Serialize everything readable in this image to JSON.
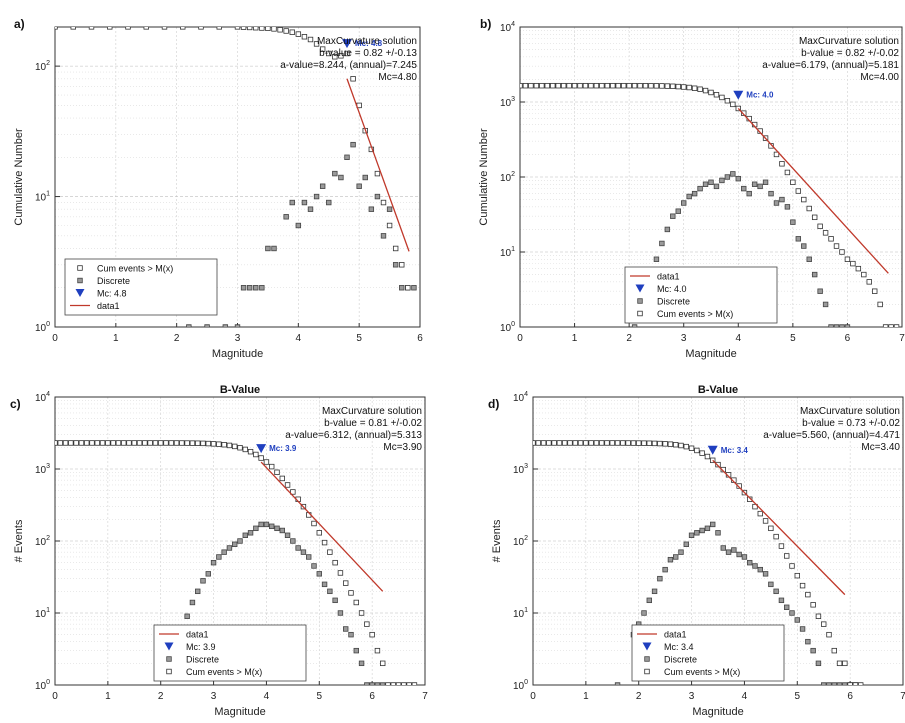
{
  "chart_data": [
    {
      "panel_label": "a)",
      "type": "scatter",
      "title": "",
      "xlabel": "Magnitude",
      "ylabel": "Cumulative Number",
      "xlim": [
        0,
        6
      ],
      "ylim_log10": [
        0,
        2.3
      ],
      "y_scale": "log",
      "x_ticks": [
        "0",
        "1",
        "2",
        "3",
        "4",
        "5",
        "6"
      ],
      "y_tick_exponents": [
        "0",
        "1",
        "2"
      ],
      "grid": true,
      "legend_placement": "bottom-left",
      "legend": [
        "Cum events > M(x)",
        "Discrete",
        "Mc: 4.8",
        "data1"
      ],
      "annotation": [
        "MaxCurvature solution",
        "b-value = 0.82 +/-0.13",
        "a-value=8.244, (annual)=7.245",
        "Mc=4.80"
      ],
      "mc_label": "Mc: 4.8",
      "mc": [
        4.8,
        150
      ],
      "series": [
        {
          "name": "Cum events > M(x)",
          "x": [
            0.0,
            0.3,
            0.6,
            0.9,
            1.2,
            1.5,
            1.8,
            2.1,
            2.4,
            2.7,
            3.0,
            3.1,
            3.2,
            3.3,
            3.4,
            3.5,
            3.6,
            3.7,
            3.8,
            3.9,
            4.0,
            4.1,
            4.2,
            4.3,
            4.4,
            4.5,
            4.6,
            4.7,
            4.8,
            4.9,
            5.0,
            5.1,
            5.2,
            5.3,
            5.4,
            5.5,
            5.6,
            5.7,
            5.8
          ],
          "y": [
            200,
            200,
            200,
            200,
            200,
            200,
            200,
            200,
            200,
            200,
            200,
            199,
            198,
            197,
            196,
            195,
            193,
            190,
            186,
            182,
            176,
            168,
            160,
            148,
            135,
            125,
            118,
            120,
            125,
            80,
            50,
            32,
            23,
            15,
            9,
            6,
            4,
            3,
            2
          ]
        },
        {
          "name": "Discrete",
          "x": [
            2.2,
            2.5,
            2.8,
            3.0,
            3.1,
            3.2,
            3.3,
            3.4,
            3.5,
            3.6,
            3.8,
            3.9,
            4.0,
            4.1,
            4.2,
            4.3,
            4.4,
            4.5,
            4.6,
            4.7,
            4.8,
            4.9,
            5.0,
            5.1,
            5.2,
            5.3,
            5.4,
            5.5,
            5.6,
            5.7,
            5.8,
            5.9
          ],
          "y": [
            1,
            1,
            1,
            1,
            2,
            2,
            2,
            2,
            4,
            4,
            7,
            9,
            6,
            9,
            8,
            10,
            12,
            9,
            15,
            14,
            20,
            25,
            12,
            14,
            8,
            10,
            5,
            8,
            3,
            2,
            2,
            2
          ]
        },
        {
          "name": "data1",
          "x": [
            4.8,
            5.82
          ],
          "y": [
            80,
            3.8
          ]
        }
      ]
    },
    {
      "panel_label": "b)",
      "type": "scatter",
      "title": "",
      "xlabel": "Magnitude",
      "ylabel": "Cumulative Number",
      "xlim": [
        0,
        7
      ],
      "ylim_log10": [
        0,
        4
      ],
      "y_scale": "log",
      "x_ticks": [
        "0",
        "1",
        "2",
        "3",
        "4",
        "5",
        "6",
        "7"
      ],
      "y_tick_exponents": [
        "0",
        "1",
        "2",
        "3",
        "4"
      ],
      "grid": true,
      "legend_placement": "bottom-center",
      "legend": [
        "data1",
        "Mc: 4.0",
        "Discrete",
        "Cum events > M(x)"
      ],
      "annotation": [
        "MaxCurvature solution",
        "b-value = 0.82 +/-0.02",
        "a-value=6.179, (annual)=5.181",
        "Mc=4.00"
      ],
      "mc_label": "Mc: 4.0",
      "mc": [
        4.0,
        1250
      ],
      "series": [
        {
          "name": "Cum events > M(x)",
          "x": [
            0.0,
            0.1,
            0.2,
            0.3,
            0.4,
            0.5,
            0.6,
            0.7,
            0.8,
            0.9,
            1.0,
            1.1,
            1.2,
            1.3,
            1.4,
            1.5,
            1.6,
            1.7,
            1.8,
            1.9,
            2.0,
            2.1,
            2.2,
            2.3,
            2.4,
            2.5,
            2.6,
            2.7,
            2.8,
            2.9,
            3.0,
            3.1,
            3.2,
            3.3,
            3.4,
            3.5,
            3.6,
            3.7,
            3.8,
            3.9,
            4.0,
            4.1,
            4.2,
            4.3,
            4.4,
            4.5,
            4.6,
            4.7,
            4.8,
            4.9,
            5.0,
            5.1,
            5.2,
            5.3,
            5.4,
            5.5,
            5.6,
            5.7,
            5.8,
            5.9,
            6.0,
            6.1,
            6.2,
            6.3,
            6.4,
            6.5,
            6.6,
            6.7,
            6.8,
            6.9
          ],
          "y": [
            1650,
            1650,
            1650,
            1650,
            1650,
            1650,
            1650,
            1650,
            1650,
            1650,
            1650,
            1650,
            1650,
            1650,
            1650,
            1650,
            1650,
            1650,
            1650,
            1650,
            1650,
            1650,
            1649,
            1648,
            1646,
            1643,
            1638,
            1630,
            1620,
            1605,
            1585,
            1560,
            1525,
            1480,
            1420,
            1340,
            1250,
            1150,
            1040,
            930,
            820,
            710,
            600,
            500,
            410,
            330,
            260,
            200,
            150,
            115,
            85,
            65,
            50,
            38,
            29,
            22,
            18,
            15,
            12,
            10,
            8,
            7,
            6,
            5,
            4,
            3,
            2,
            1,
            1,
            1
          ]
        },
        {
          "name": "Discrete",
          "x": [
            2.1,
            2.2,
            2.3,
            2.4,
            2.5,
            2.6,
            2.7,
            2.8,
            2.9,
            3.0,
            3.1,
            3.2,
            3.3,
            3.4,
            3.5,
            3.6,
            3.7,
            3.8,
            3.9,
            4.0,
            4.1,
            4.2,
            4.3,
            4.4,
            4.5,
            4.6,
            4.7,
            4.8,
            4.9,
            5.0,
            5.1,
            5.2,
            5.3,
            5.4,
            5.5,
            5.6,
            5.7,
            5.8,
            5.9,
            6.0
          ],
          "y": [
            1,
            2,
            3,
            5,
            8,
            13,
            20,
            30,
            35,
            45,
            55,
            60,
            70,
            80,
            85,
            75,
            90,
            100,
            110,
            95,
            70,
            60,
            80,
            75,
            85,
            60,
            45,
            50,
            40,
            25,
            15,
            12,
            8,
            5,
            3,
            2,
            1,
            1,
            1,
            1
          ]
        },
        {
          "name": "data1",
          "x": [
            4.0,
            6.75
          ],
          "y": [
            820,
            5.2
          ]
        }
      ]
    },
    {
      "panel_label": "c)",
      "type": "scatter",
      "title": "B-Value",
      "xlabel": "Magnitude",
      "ylabel": "# Events",
      "xlim": [
        0,
        7
      ],
      "ylim_log10": [
        0,
        4
      ],
      "y_scale": "log",
      "x_ticks": [
        "0",
        "1",
        "2",
        "3",
        "4",
        "5",
        "6",
        "7"
      ],
      "y_tick_exponents": [
        "0",
        "1",
        "2",
        "3",
        "4"
      ],
      "grid": true,
      "legend_placement": "bottom-center",
      "legend": [
        "data1",
        "Mc: 3.9",
        "Discrete",
        "Cum events > M(x)"
      ],
      "annotation": [
        "MaxCurvature solution",
        "b-value = 0.81 +/-0.02",
        "a-value=6.312, (annual)=5.313",
        "Mc=3.90"
      ],
      "mc_label": "Mc: 3.9",
      "mc": [
        3.9,
        1950
      ],
      "series": [
        {
          "name": "Cum events > M(x)",
          "x": [
            0.0,
            0.1,
            0.2,
            0.3,
            0.4,
            0.5,
            0.6,
            0.7,
            0.8,
            0.9,
            1.0,
            1.1,
            1.2,
            1.3,
            1.4,
            1.5,
            1.6,
            1.7,
            1.8,
            1.9,
            2.0,
            2.1,
            2.2,
            2.3,
            2.4,
            2.5,
            2.6,
            2.7,
            2.8,
            2.9,
            3.0,
            3.1,
            3.2,
            3.3,
            3.4,
            3.5,
            3.6,
            3.7,
            3.8,
            3.9,
            4.0,
            4.1,
            4.2,
            4.3,
            4.4,
            4.5,
            4.6,
            4.7,
            4.8,
            4.9,
            5.0,
            5.1,
            5.2,
            5.3,
            5.4,
            5.5,
            5.6,
            5.7,
            5.8,
            5.9,
            6.0,
            6.1,
            6.2,
            6.3,
            6.4,
            6.5,
            6.6,
            6.7,
            6.8
          ],
          "y": [
            2300,
            2300,
            2300,
            2300,
            2300,
            2300,
            2300,
            2300,
            2300,
            2300,
            2300,
            2300,
            2300,
            2300,
            2300,
            2300,
            2300,
            2300,
            2300,
            2300,
            2300,
            2300,
            2299,
            2298,
            2296,
            2292,
            2287,
            2280,
            2270,
            2255,
            2235,
            2210,
            2175,
            2125,
            2060,
            1975,
            1870,
            1740,
            1590,
            1420,
            1250,
            1080,
            900,
            740,
            600,
            480,
            380,
            300,
            230,
            175,
            130,
            95,
            70,
            50,
            36,
            26,
            19,
            14,
            10,
            7,
            5,
            3,
            2,
            1,
            1,
            1,
            1,
            1,
            1
          ]
        },
        {
          "name": "Discrete",
          "x": [
            2.2,
            2.3,
            2.4,
            2.5,
            2.6,
            2.7,
            2.8,
            2.9,
            3.0,
            3.1,
            3.2,
            3.3,
            3.4,
            3.5,
            3.6,
            3.7,
            3.8,
            3.9,
            4.0,
            4.1,
            4.2,
            4.3,
            4.4,
            4.5,
            4.6,
            4.7,
            4.8,
            4.9,
            5.0,
            5.1,
            5.2,
            5.3,
            5.4,
            5.5,
            5.6,
            5.7,
            5.8,
            5.9,
            6.0,
            6.1,
            6.2
          ],
          "y": [
            2,
            4,
            6,
            9,
            14,
            20,
            28,
            35,
            50,
            60,
            70,
            80,
            90,
            100,
            120,
            130,
            150,
            170,
            170,
            160,
            150,
            140,
            120,
            100,
            80,
            70,
            60,
            45,
            35,
            25,
            20,
            15,
            10,
            6,
            5,
            3,
            2,
            1,
            1,
            1,
            1
          ]
        },
        {
          "name": "data1",
          "x": [
            3.9,
            6.2
          ],
          "y": [
            1250,
            20
          ]
        }
      ]
    },
    {
      "panel_label": "d)",
      "type": "scatter",
      "title": "B-Value",
      "xlabel": "Magnitude",
      "ylabel": "# Events",
      "xlim": [
        0,
        7
      ],
      "ylim_log10": [
        0,
        4
      ],
      "y_scale": "log",
      "x_ticks": [
        "0",
        "1",
        "2",
        "3",
        "4",
        "5",
        "6",
        "7"
      ],
      "y_tick_exponents": [
        "0",
        "1",
        "2",
        "3",
        "4"
      ],
      "grid": true,
      "legend_placement": "bottom-center",
      "legend": [
        "data1",
        "Mc: 3.4",
        "Discrete",
        "Cum events > M(x)"
      ],
      "annotation": [
        "MaxCurvature solution",
        "b-value = 0.73 +/-0.02",
        "a-value=5.560, (annual)=4.471",
        "Mc=3.40"
      ],
      "mc_label": "Mc: 3.4",
      "mc": [
        3.4,
        1850
      ],
      "series": [
        {
          "name": "Cum events > M(x)",
          "x": [
            0.0,
            0.1,
            0.2,
            0.3,
            0.4,
            0.5,
            0.6,
            0.7,
            0.8,
            0.9,
            1.0,
            1.1,
            1.2,
            1.3,
            1.4,
            1.5,
            1.6,
            1.7,
            1.8,
            1.9,
            2.0,
            2.1,
            2.2,
            2.3,
            2.4,
            2.5,
            2.6,
            2.7,
            2.8,
            2.9,
            3.0,
            3.1,
            3.2,
            3.3,
            3.4,
            3.5,
            3.6,
            3.7,
            3.8,
            3.9,
            4.0,
            4.1,
            4.2,
            4.3,
            4.4,
            4.5,
            4.6,
            4.7,
            4.8,
            4.9,
            5.0,
            5.1,
            5.2,
            5.3,
            5.4,
            5.5,
            5.6,
            5.7,
            5.8,
            5.9,
            6.0,
            6.1,
            6.2
          ],
          "y": [
            2300,
            2300,
            2300,
            2300,
            2300,
            2300,
            2300,
            2300,
            2300,
            2300,
            2300,
            2300,
            2300,
            2300,
            2300,
            2300,
            2299,
            2298,
            2296,
            2293,
            2290,
            2285,
            2278,
            2268,
            2255,
            2237,
            2212,
            2175,
            2120,
            2045,
            1940,
            1810,
            1660,
            1490,
            1320,
            1150,
            980,
            830,
            700,
            580,
            470,
            380,
            300,
            240,
            190,
            150,
            115,
            85,
            62,
            45,
            33,
            24,
            18,
            13,
            9,
            7,
            5,
            3,
            2,
            2,
            1,
            1,
            1
          ]
        },
        {
          "name": "Discrete",
          "x": [
            1.6,
            1.9,
            2.0,
            2.1,
            2.2,
            2.3,
            2.4,
            2.5,
            2.6,
            2.7,
            2.8,
            2.9,
            3.0,
            3.1,
            3.2,
            3.3,
            3.4,
            3.5,
            3.6,
            3.7,
            3.8,
            3.9,
            4.0,
            4.1,
            4.2,
            4.3,
            4.4,
            4.5,
            4.6,
            4.7,
            4.8,
            4.9,
            5.0,
            5.1,
            5.2,
            5.3,
            5.4,
            5.5,
            5.6,
            5.7,
            5.8,
            5.9,
            6.0,
            6.1
          ],
          "y": [
            1,
            5,
            7,
            10,
            15,
            20,
            30,
            40,
            55,
            60,
            70,
            90,
            120,
            130,
            140,
            150,
            170,
            130,
            80,
            70,
            75,
            65,
            60,
            50,
            45,
            40,
            35,
            25,
            20,
            15,
            12,
            10,
            8,
            6,
            4,
            3,
            2,
            1,
            1,
            1,
            1,
            1,
            1,
            1
          ]
        },
        {
          "name": "data1",
          "x": [
            3.4,
            5.9
          ],
          "y": [
            1320,
            18
          ]
        }
      ]
    }
  ]
}
